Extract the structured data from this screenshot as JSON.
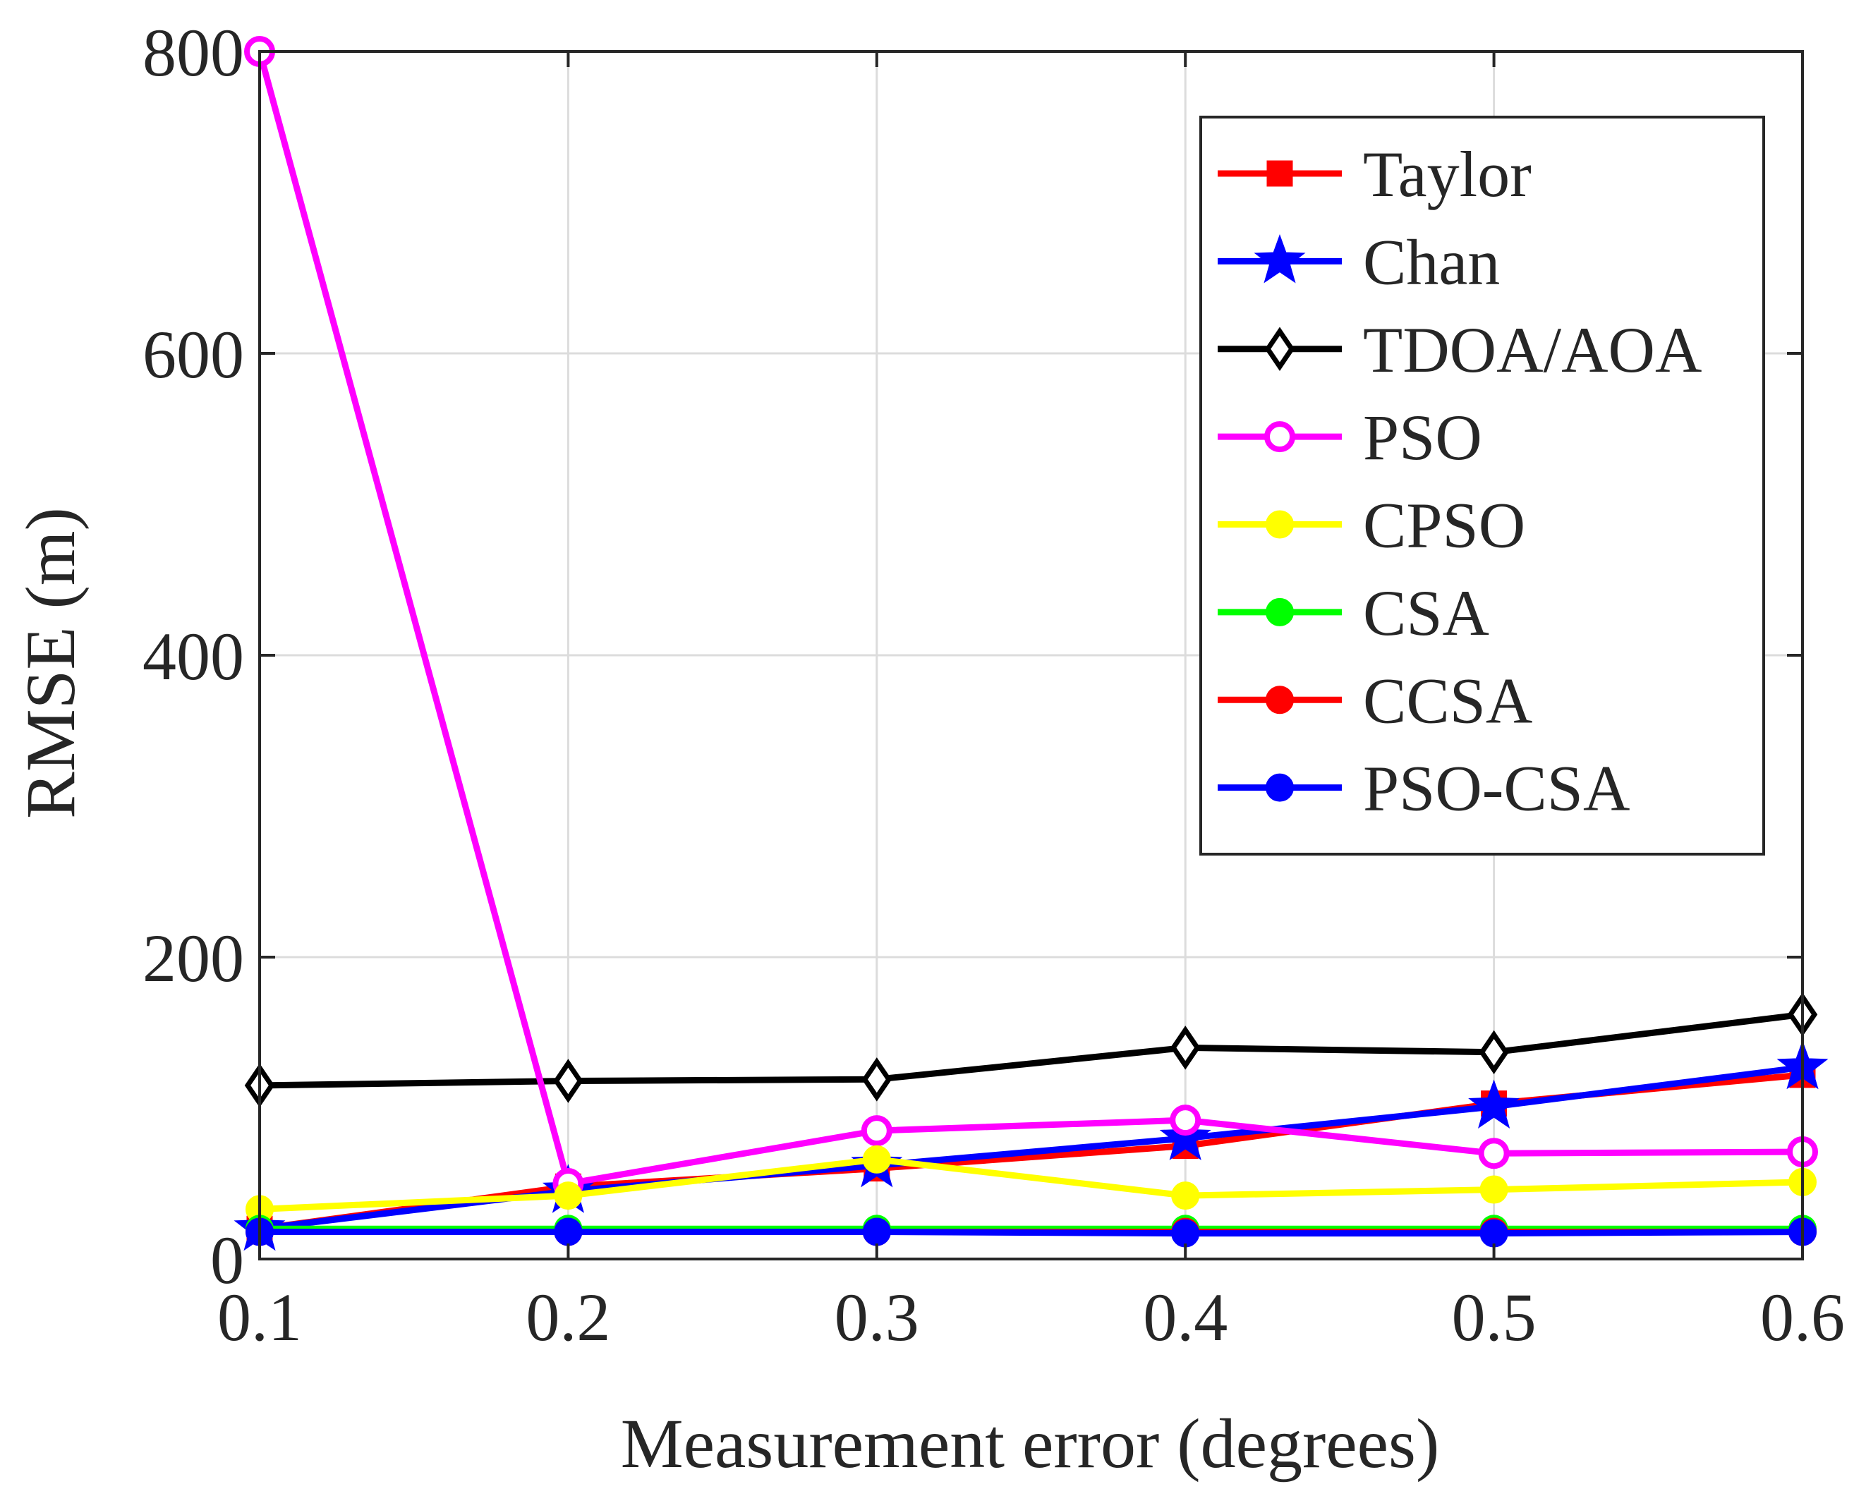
{
  "chart_data": {
    "type": "line",
    "title": "",
    "xlabel": "Measurement error (degrees)",
    "ylabel": "RMSE (m)",
    "xlim": [
      0.1,
      0.6
    ],
    "ylim": [
      0,
      800
    ],
    "x": [
      0.1,
      0.2,
      0.3,
      0.4,
      0.5,
      0.6
    ],
    "xticks": [
      0.1,
      0.2,
      0.3,
      0.4,
      0.5,
      0.6
    ],
    "xtick_labels": [
      "0.1",
      "0.2",
      "0.3",
      "0.4",
      "0.5",
      "0.6"
    ],
    "yticks": [
      0,
      200,
      400,
      600,
      800
    ],
    "ytick_labels": [
      "0",
      "200",
      "400",
      "600",
      "800"
    ],
    "grid": true,
    "legend_position": "top-right",
    "series": [
      {
        "name": "Taylor",
        "color": "#ff0000",
        "marker": "square",
        "values": [
          20,
          48,
          60,
          75,
          103,
          122
        ]
      },
      {
        "name": "Chan",
        "color": "#0000ff",
        "marker": "star",
        "values": [
          20,
          45,
          62,
          80,
          101,
          127
        ]
      },
      {
        "name": "TDOA/AOA",
        "color": "#000000",
        "marker": "diamond",
        "values": [
          115,
          118,
          119,
          140,
          137,
          162
        ]
      },
      {
        "name": "PSO",
        "color": "#ff00ff",
        "marker": "open-circle",
        "values": [
          800,
          50,
          85,
          92,
          70,
          71
        ]
      },
      {
        "name": "CPSO",
        "color": "#ffff00",
        "marker": "filled-circle",
        "values": [
          33,
          42,
          66,
          42,
          46,
          51
        ]
      },
      {
        "name": "CSA",
        "color": "#00ff00",
        "marker": "filled-circle",
        "values": [
          20,
          20,
          20,
          20,
          20,
          20
        ]
      },
      {
        "name": "CCSA",
        "color": "#ff0000",
        "marker": "filled-circle",
        "values": [
          18,
          18,
          18,
          18,
          18,
          18
        ]
      },
      {
        "name": "PSO-CSA",
        "color": "#0000ff",
        "marker": "filled-circle",
        "values": [
          18,
          18,
          18,
          17,
          17,
          18
        ]
      }
    ]
  }
}
